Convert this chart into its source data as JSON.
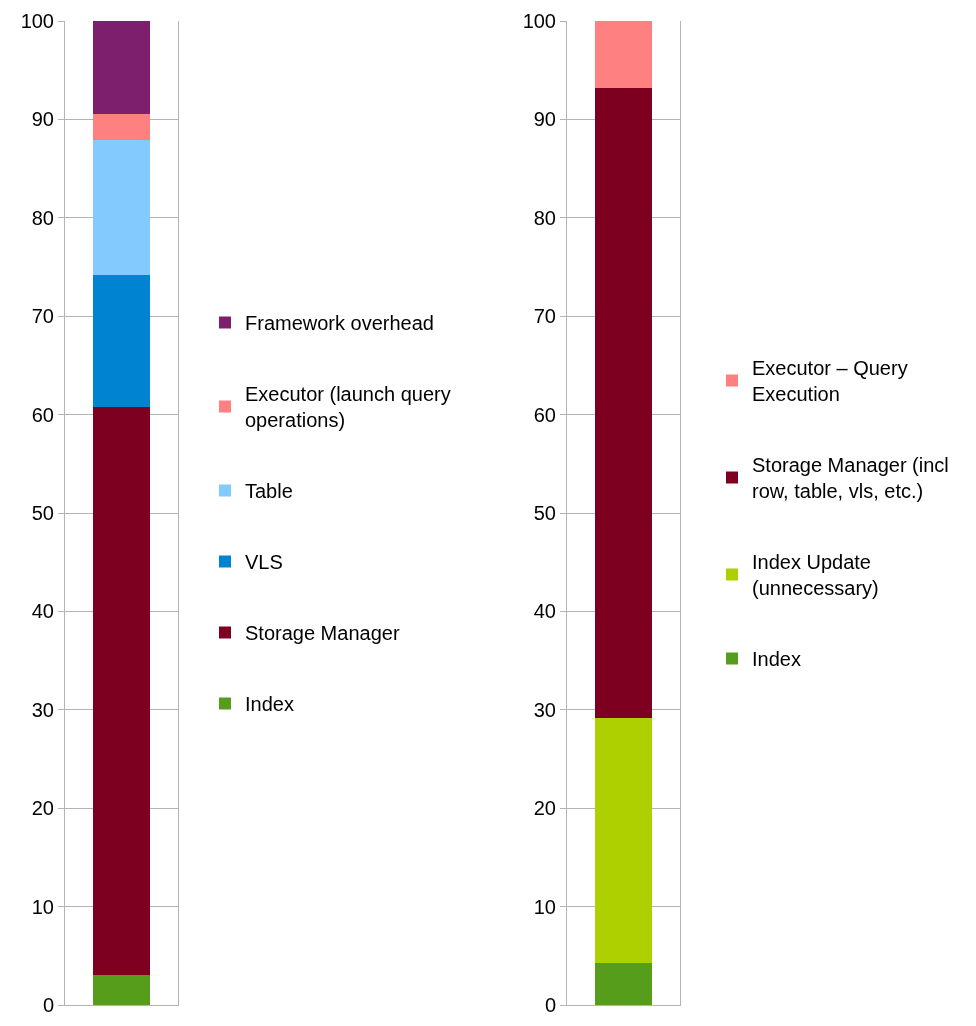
{
  "chart_data": [
    {
      "type": "bar",
      "stacked": true,
      "categories": [
        null
      ],
      "ylim": [
        0,
        100
      ],
      "yticks": [
        0,
        10,
        20,
        30,
        40,
        50,
        60,
        70,
        80,
        90,
        100
      ],
      "grid": "y",
      "legend": "right",
      "tick_labels": "y",
      "series": [
        {
          "name": "Index",
          "color": "#579d1c",
          "values": [
            3.0
          ]
        },
        {
          "name": "Storage Manager",
          "color": "#7e0021",
          "values": [
            57.8
          ]
        },
        {
          "name": "VLS",
          "color": "#0084d1",
          "values": [
            13.4
          ]
        },
        {
          "name": "Table",
          "color": "#83caff",
          "values": [
            13.7
          ]
        },
        {
          "name": "Executor (launch query operations)",
          "color": "#ff8080",
          "values": [
            2.7
          ]
        },
        {
          "name": "Framework overhead",
          "color": "#7e1f6e",
          "values": [
            9.4
          ]
        }
      ]
    },
    {
      "type": "bar",
      "stacked": true,
      "categories": [
        null
      ],
      "ylim": [
        0,
        100
      ],
      "yticks": [
        0,
        10,
        20,
        30,
        40,
        50,
        60,
        70,
        80,
        90,
        100
      ],
      "grid": "y",
      "legend": "right",
      "tick_labels": "y",
      "series": [
        {
          "name": "Index",
          "color": "#579d1c",
          "values": [
            4.3
          ]
        },
        {
          "name": "Index Update (unnecessary)",
          "color": "#aecf00",
          "values": [
            24.9
          ]
        },
        {
          "name": "Storage Manager (incl row, table, vls, etc.)",
          "color": "#7e0021",
          "values": [
            64.0
          ]
        },
        {
          "name": "Executor – Query Execution",
          "color": "#ff8080",
          "values": [
            6.8
          ]
        }
      ]
    }
  ]
}
